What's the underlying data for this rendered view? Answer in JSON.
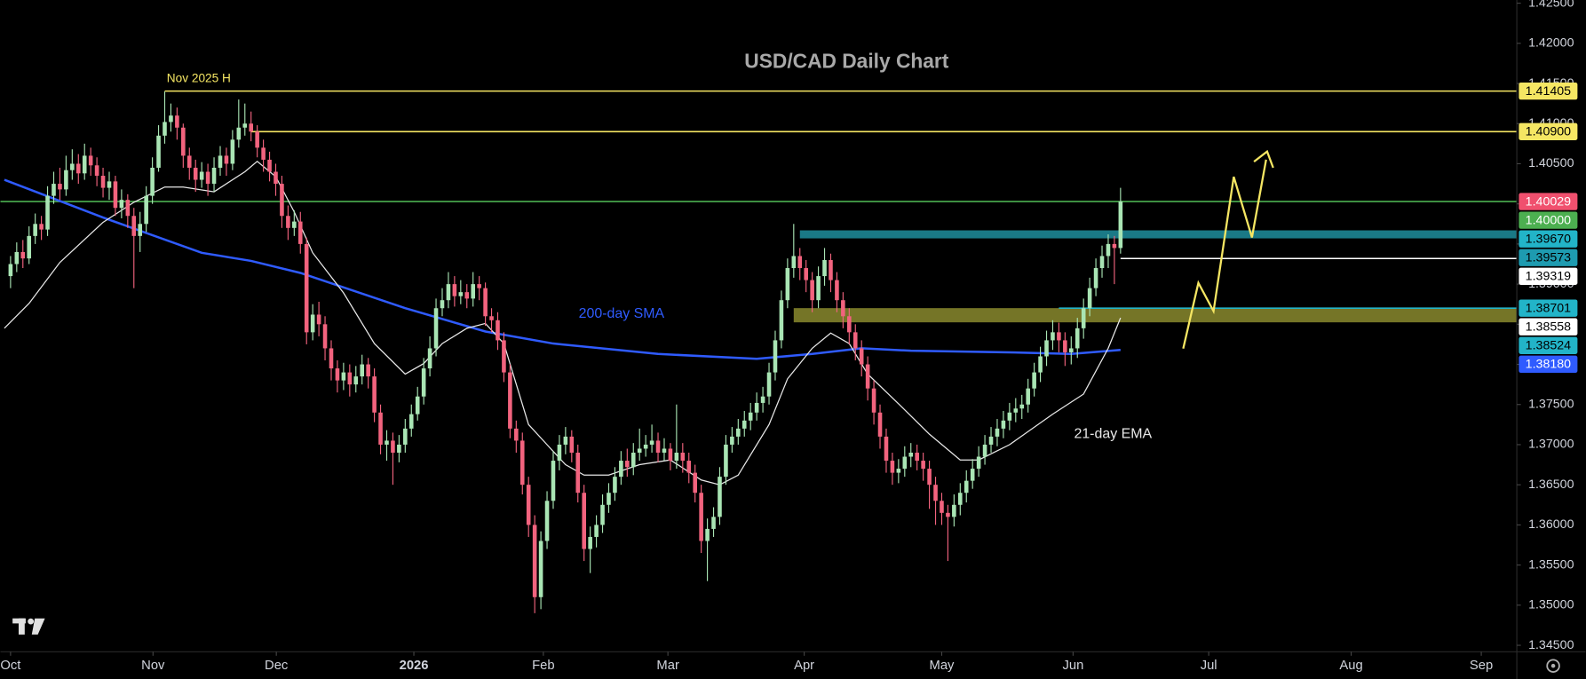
{
  "chart_data": {
    "type": "candlestick",
    "title": "USD/CAD Daily Chart",
    "up_color": "#a9e5b4",
    "down_color": "#f2637e",
    "grid": false,
    "xlim": [
      -1.64,
      244.26
    ],
    "xticks": [
      {
        "value": 0,
        "label": "Oct"
      },
      {
        "value": 23.1,
        "label": "Nov"
      },
      {
        "value": 43.1,
        "label": "Dec"
      },
      {
        "value": 65.4,
        "label": "2026"
      },
      {
        "value": 86.4,
        "label": "Feb"
      },
      {
        "value": 106.6,
        "label": "Mar"
      },
      {
        "value": 128.7,
        "label": "Apr"
      },
      {
        "value": 151,
        "label": "May"
      },
      {
        "value": 172.3,
        "label": "Jun"
      },
      {
        "value": 194.3,
        "label": "Jul"
      },
      {
        "value": 217.4,
        "label": "Aug"
      },
      {
        "value": 238.5,
        "label": "Sep"
      }
    ],
    "ylim": [
      1.3442,
      1.4254
    ],
    "yticks": [
      {
        "value": 1.345,
        "label": "1.34500"
      },
      {
        "value": 1.35,
        "label": "1.35000"
      },
      {
        "value": 1.355,
        "label": "1.35500"
      },
      {
        "value": 1.36,
        "label": "1.36000"
      },
      {
        "value": 1.365,
        "label": "1.36500"
      },
      {
        "value": 1.37,
        "label": "1.37000"
      },
      {
        "value": 1.375,
        "label": "1.37500"
      },
      {
        "value": 1.38,
        "label": "1.38000"
      },
      {
        "value": 1.385,
        "label": "1.38500"
      },
      {
        "value": 1.39,
        "label": "1.39000"
      },
      {
        "value": 1.395,
        "label": "1.39500"
      },
      {
        "value": 1.4,
        "label": "1.40000"
      },
      {
        "value": 1.405,
        "label": "1.40500"
      },
      {
        "value": 1.41,
        "label": "1.41000"
      },
      {
        "value": 1.415,
        "label": "1.41500"
      },
      {
        "value": 1.42,
        "label": "1.42000"
      },
      {
        "value": 1.425,
        "label": "1.42500"
      }
    ],
    "open": [
      1.391,
      1.3925,
      1.394,
      1.3932,
      1.396,
      1.3975,
      1.3968,
      1.401,
      1.4025,
      1.4018,
      1.4042,
      1.405,
      1.4038,
      1.406,
      1.4048,
      1.4035,
      1.402,
      1.4028,
      1.3995,
      1.4005,
      1.3985,
      1.396,
      1.3975,
      1.401,
      1.4045,
      1.4085,
      1.4102,
      1.411,
      1.4095,
      1.406,
      1.4045,
      1.403,
      1.404,
      1.4025,
      1.4045,
      1.406,
      1.405,
      1.408,
      1.4095,
      1.41,
      1.409,
      1.407,
      1.4055,
      1.404,
      1.4025,
      1.3985,
      1.397,
      1.3978,
      1.395,
      1.384,
      1.3862,
      1.385,
      1.382,
      1.3795,
      1.378,
      1.379,
      1.3775,
      1.3785,
      1.38,
      1.3785,
      1.374,
      1.37,
      1.3705,
      1.369,
      1.37,
      1.372,
      1.3738,
      1.376,
      1.3795,
      1.382,
      1.387,
      1.388,
      1.39,
      1.3885,
      1.389,
      1.3882,
      1.39,
      1.3895,
      1.386,
      1.3855,
      1.383,
      1.379,
      1.372,
      1.3705,
      1.365,
      1.36,
      1.351,
      1.358,
      1.363,
      1.368,
      1.37,
      1.371,
      1.369,
      1.364,
      1.357,
      1.3585,
      1.36,
      1.3625,
      1.364,
      1.366,
      1.368,
      1.3672,
      1.369,
      1.3695,
      1.37,
      1.3705,
      1.369,
      1.3695,
      1.368,
      1.369,
      1.368,
      1.3665,
      1.364,
      1.358,
      1.3595,
      1.361,
      1.366,
      1.37,
      1.371,
      1.372,
      1.373,
      1.374,
      1.3752,
      1.376,
      1.379,
      1.383,
      1.388,
      1.392,
      1.3935,
      1.392,
      1.3905,
      1.388,
      1.391,
      1.393,
      1.3905,
      1.388,
      1.386,
      1.384,
      1.382,
      1.38,
      1.377,
      1.374,
      1.371,
      1.368,
      1.3665,
      1.367,
      1.3685,
      1.369,
      1.368,
      1.367,
      1.365,
      1.363,
      1.3615,
      1.361,
      1.3625,
      1.364,
      1.3655,
      1.367,
      1.3685,
      1.37,
      1.371,
      1.372,
      1.373,
      1.374,
      1.3745,
      1.375,
      1.377,
      1.379,
      1.381,
      1.383,
      1.384,
      1.383,
      1.3815,
      1.382,
      1.3845,
      1.387,
      1.3895,
      1.392,
      1.3935,
      1.395,
      1.3945
    ],
    "high": [
      1.3935,
      1.3952,
      1.3955,
      1.3972,
      1.3988,
      1.3985,
      1.4022,
      1.404,
      1.4045,
      1.406,
      1.4068,
      1.4062,
      1.4075,
      1.407,
      1.4058,
      1.4045,
      1.404,
      1.4035,
      1.4018,
      1.4012,
      1.3995,
      1.399,
      1.4022,
      1.4058,
      1.4098,
      1.414,
      1.4125,
      1.412,
      1.41,
      1.407,
      1.4055,
      1.4052,
      1.405,
      1.4058,
      1.4072,
      1.407,
      1.4092,
      1.413,
      1.4125,
      1.4115,
      1.4098,
      1.408,
      1.4065,
      1.405,
      1.4035,
      1.3998,
      1.3992,
      1.399,
      1.3958,
      1.3875,
      1.3878,
      1.386,
      1.383,
      1.3805,
      1.3802,
      1.38,
      1.3798,
      1.3812,
      1.3808,
      1.3795,
      1.375,
      1.3718,
      1.3715,
      1.3712,
      1.3732,
      1.375,
      1.3772,
      1.3808,
      1.3835,
      1.3882,
      1.3895,
      1.3915,
      1.391,
      1.3905,
      1.39,
      1.3915,
      1.391,
      1.3902,
      1.387,
      1.3865,
      1.384,
      1.38,
      1.373,
      1.3715,
      1.366,
      1.3612,
      1.3592,
      1.3642,
      1.3692,
      1.3712,
      1.3722,
      1.3718,
      1.37,
      1.365,
      1.3598,
      1.3612,
      1.3638,
      1.3652,
      1.3672,
      1.3692,
      1.3695,
      1.3702,
      1.372,
      1.3712,
      1.3725,
      1.3715,
      1.3708,
      1.3702,
      1.375,
      1.3702,
      1.369,
      1.3675,
      1.365,
      1.3608,
      1.3622,
      1.3672,
      1.3712,
      1.3722,
      1.3732,
      1.3742,
      1.3752,
      1.3765,
      1.3772,
      1.3802,
      1.3842,
      1.3892,
      1.3932,
      1.3975,
      1.3945,
      1.393,
      1.3915,
      1.3922,
      1.3945,
      1.3938,
      1.3915,
      1.389,
      1.387,
      1.385,
      1.383,
      1.381,
      1.378,
      1.375,
      1.372,
      1.369,
      1.3682,
      1.3698,
      1.3702,
      1.37,
      1.369,
      1.368,
      1.366,
      1.364,
      1.3625,
      1.3638,
      1.3652,
      1.3668,
      1.3682,
      1.3698,
      1.3712,
      1.3722,
      1.3732,
      1.3742,
      1.3752,
      1.3758,
      1.3762,
      1.3782,
      1.3802,
      1.3822,
      1.3842,
      1.3855,
      1.3852,
      1.384,
      1.3835,
      1.3858,
      1.3882,
      1.3908,
      1.3932,
      1.3948,
      1.3962,
      1.396,
      1.402
    ],
    "low": [
      1.3895,
      1.3915,
      1.392,
      1.3925,
      1.395,
      1.3955,
      1.396,
      1.4,
      1.4005,
      1.401,
      1.403,
      1.4025,
      1.403,
      1.4035,
      1.4022,
      1.4008,
      1.4005,
      1.3985,
      1.3982,
      1.397,
      1.3895,
      1.394,
      1.3965,
      1.4,
      1.404,
      1.4075,
      1.409,
      1.408,
      1.4045,
      1.403,
      1.4015,
      1.402,
      1.401,
      1.4015,
      1.4035,
      1.4035,
      1.4042,
      1.407,
      1.4085,
      1.4078,
      1.4058,
      1.404,
      1.4028,
      1.401,
      1.397,
      1.3955,
      1.396,
      1.3938,
      1.3825,
      1.383,
      1.3835,
      1.3805,
      1.378,
      1.3765,
      1.3768,
      1.376,
      1.3765,
      1.3775,
      1.377,
      1.3728,
      1.3688,
      1.368,
      1.365,
      1.3678,
      1.369,
      1.371,
      1.373,
      1.375,
      1.3785,
      1.381,
      1.386,
      1.387,
      1.3872,
      1.3875,
      1.387,
      1.3872,
      1.388,
      1.3848,
      1.384,
      1.3818,
      1.3778,
      1.3708,
      1.369,
      1.3638,
      1.3585,
      1.349,
      1.3495,
      1.357,
      1.362,
      1.3668,
      1.3688,
      1.3678,
      1.3628,
      1.3555,
      1.354,
      1.3572,
      1.359,
      1.3615,
      1.363,
      1.365,
      1.366,
      1.3662,
      1.368,
      1.3685,
      1.369,
      1.3678,
      1.368,
      1.3668,
      1.367,
      1.3665,
      1.3652,
      1.3628,
      1.3565,
      1.353,
      1.3585,
      1.36,
      1.365,
      1.369,
      1.37,
      1.371,
      1.3718,
      1.373,
      1.374,
      1.375,
      1.378,
      1.382,
      1.387,
      1.3908,
      1.3905,
      1.389,
      1.3865,
      1.387,
      1.3898,
      1.389,
      1.3865,
      1.3845,
      1.3825,
      1.3805,
      1.3785,
      1.3755,
      1.3725,
      1.3695,
      1.3665,
      1.365,
      1.3652,
      1.366,
      1.3672,
      1.3668,
      1.3655,
      1.362,
      1.36,
      1.36,
      1.3555,
      1.3598,
      1.3612,
      1.3628,
      1.3645,
      1.366,
      1.3675,
      1.369,
      1.3698,
      1.3708,
      1.3718,
      1.3728,
      1.3732,
      1.374,
      1.376,
      1.3778,
      1.3798,
      1.3818,
      1.3815,
      1.3798,
      1.38,
      1.3808,
      1.3832,
      1.386,
      1.3885,
      1.3908,
      1.392,
      1.39,
      1.3938
    ],
    "close": [
      1.3925,
      1.394,
      1.3932,
      1.396,
      1.3975,
      1.3968,
      1.401,
      1.4025,
      1.4018,
      1.4042,
      1.405,
      1.4038,
      1.406,
      1.4048,
      1.4035,
      1.402,
      1.4028,
      1.3995,
      1.4005,
      1.3985,
      1.396,
      1.3975,
      1.401,
      1.4045,
      1.4085,
      1.4102,
      1.411,
      1.4095,
      1.406,
      1.4045,
      1.403,
      1.404,
      1.4025,
      1.4045,
      1.406,
      1.405,
      1.408,
      1.4095,
      1.41,
      1.409,
      1.407,
      1.4055,
      1.404,
      1.4025,
      1.3985,
      1.397,
      1.3978,
      1.395,
      1.384,
      1.3862,
      1.385,
      1.382,
      1.3795,
      1.378,
      1.379,
      1.3775,
      1.3785,
      1.38,
      1.3785,
      1.374,
      1.37,
      1.3705,
      1.369,
      1.37,
      1.372,
      1.3738,
      1.376,
      1.3795,
      1.382,
      1.387,
      1.388,
      1.39,
      1.3885,
      1.389,
      1.3882,
      1.39,
      1.3895,
      1.386,
      1.3855,
      1.383,
      1.379,
      1.372,
      1.3705,
      1.365,
      1.36,
      1.351,
      1.358,
      1.363,
      1.368,
      1.37,
      1.371,
      1.369,
      1.364,
      1.357,
      1.3585,
      1.36,
      1.3625,
      1.364,
      1.366,
      1.368,
      1.3672,
      1.369,
      1.3695,
      1.37,
      1.3705,
      1.369,
      1.3695,
      1.368,
      1.369,
      1.368,
      1.3665,
      1.364,
      1.358,
      1.3595,
      1.361,
      1.366,
      1.37,
      1.371,
      1.372,
      1.373,
      1.374,
      1.3752,
      1.376,
      1.379,
      1.383,
      1.388,
      1.392,
      1.3935,
      1.392,
      1.3905,
      1.388,
      1.391,
      1.393,
      1.3905,
      1.388,
      1.386,
      1.384,
      1.382,
      1.38,
      1.377,
      1.374,
      1.371,
      1.368,
      1.3665,
      1.367,
      1.3685,
      1.369,
      1.368,
      1.367,
      1.365,
      1.363,
      1.3615,
      1.361,
      1.3625,
      1.364,
      1.3655,
      1.367,
      1.3685,
      1.37,
      1.371,
      1.372,
      1.373,
      1.374,
      1.3745,
      1.375,
      1.377,
      1.379,
      1.381,
      1.383,
      1.384,
      1.383,
      1.3815,
      1.382,
      1.3845,
      1.387,
      1.3895,
      1.392,
      1.3935,
      1.395,
      1.3945,
      1.4003
    ],
    "series": [
      {
        "name": "200-day SMA",
        "color": "#2f5bff",
        "x": [
          -1,
          15,
          31,
          39,
          47,
          64,
          77,
          88,
          105,
          121,
          130,
          138,
          146,
          162,
          172,
          180
        ],
        "values": [
          1.403,
          1.3983,
          1.3939,
          1.3929,
          1.3914,
          1.387,
          1.3841,
          1.3826,
          1.3813,
          1.3807,
          1.3813,
          1.382,
          1.3817,
          1.3815,
          1.3813,
          1.3818
        ]
      },
      {
        "name": "21-day EMA",
        "color": "#e8e8e8",
        "x": [
          -1,
          3,
          8,
          15,
          20,
          25,
          28,
          33,
          38,
          40,
          43,
          46,
          49,
          54,
          59,
          64,
          67,
          70,
          74,
          77,
          80,
          84,
          87,
          90,
          93,
          97,
          102,
          107,
          112,
          115,
          118,
          123,
          126,
          130,
          133,
          136,
          139,
          144,
          149,
          154,
          157,
          162,
          169,
          174,
          178,
          180
        ],
        "values": [
          1.3845,
          1.3876,
          1.3927,
          1.3977,
          1.4002,
          1.4021,
          1.4021,
          1.4015,
          1.404,
          1.4053,
          1.4034,
          1.399,
          1.3939,
          1.3889,
          1.3826,
          1.3788,
          1.3801,
          1.3826,
          1.3845,
          1.3851,
          1.3826,
          1.3725,
          1.37,
          1.3675,
          1.3662,
          1.3662,
          1.3675,
          1.3681,
          1.3656,
          1.365,
          1.3662,
          1.3725,
          1.3782,
          1.382,
          1.3839,
          1.3826,
          1.3788,
          1.3751,
          1.3713,
          1.3681,
          1.3681,
          1.37,
          1.3738,
          1.3763,
          1.382,
          1.3858
        ]
      }
    ],
    "hlines": [
      {
        "value": 1.41405,
        "color": "#f5e663",
        "from": 25,
        "label": "Nov 2025 H"
      },
      {
        "value": 1.409,
        "color": "#f5e663",
        "from": 39
      },
      {
        "value": 1.40029,
        "color": "#4caf50",
        "from": -1.64
      },
      {
        "value": 1.39319,
        "color": "#ffffff",
        "from": 180
      },
      {
        "value": 1.38701,
        "color": "#22b4c8",
        "from": 170
      }
    ],
    "zones": [
      {
        "range": [
          1.3957,
          1.3967
        ],
        "color": "#1e8e9e",
        "from": 128
      },
      {
        "range": [
          1.38524,
          1.38701
        ],
        "color": "#8a8a2e",
        "from": 127
      }
    ],
    "price_tags": [
      {
        "value": 1.41405,
        "label": "1.41405",
        "bg": "#f5e663",
        "fg": "#000000"
      },
      {
        "value": 1.409,
        "label": "1.40900",
        "bg": "#f5e663",
        "fg": "#000000"
      },
      {
        "value": 1.40029,
        "label": "1.40029",
        "bg": "#f0506e",
        "fg": "#ffffff"
      },
      {
        "value": 1.4,
        "label": "1.40000",
        "bg": "#4caf50",
        "fg": "#ffffff"
      },
      {
        "value": 1.3967,
        "label": "1.39670",
        "bg": "#22b4c8",
        "fg": "#000000"
      },
      {
        "value": 1.39573,
        "label": "1.39573",
        "bg": "#1e9bb0",
        "fg": "#000000"
      },
      {
        "value": 1.39319,
        "label": "1.39319",
        "bg": "#ffffff",
        "fg": "#000000"
      },
      {
        "value": 1.38701,
        "label": "1.38701",
        "bg": "#22b4c8",
        "fg": "#000000"
      },
      {
        "value": 1.38558,
        "label": "1.38558",
        "bg": "#ffffff",
        "fg": "#000000"
      },
      {
        "value": 1.38524,
        "label": "1.38524",
        "bg": "#22b4c8",
        "fg": "#000000"
      },
      {
        "value": 1.3818,
        "label": "1.38180",
        "bg": "#2f5bff",
        "fg": "#ffffff"
      }
    ]
  }
}
